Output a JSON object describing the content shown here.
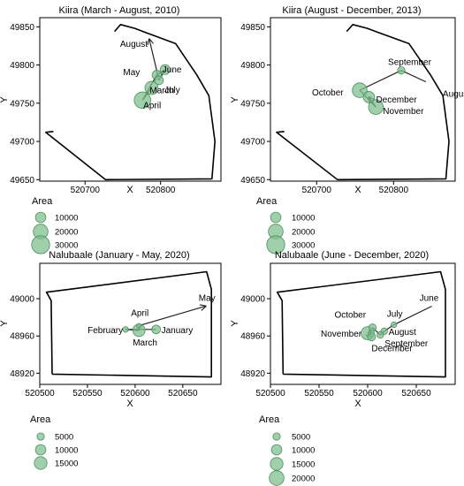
{
  "chart_data": [
    {
      "type": "scatter",
      "title": "Kiira (March - August, 2010)",
      "xlabel": "X",
      "ylabel": "Y",
      "xlim": [
        520640,
        520880
      ],
      "ylim": [
        49648,
        49862
      ],
      "x_ticks": [
        520700,
        520800
      ],
      "y_ticks": [
        49650,
        49700,
        49750,
        49800,
        49850
      ],
      "boundary": [
        [
          520658,
          49713
        ],
        [
          520648,
          49712
        ],
        [
          520727,
          49650
        ],
        [
          520868,
          49651
        ],
        [
          520872,
          49700
        ],
        [
          520864,
          49760
        ],
        [
          520848,
          49787
        ],
        [
          520820,
          49828
        ],
        [
          520779,
          49843
        ],
        [
          520766,
          49848
        ],
        [
          520747,
          49853
        ],
        [
          520739,
          49844
        ]
      ],
      "points": [
        {
          "label": "August",
          "x": 520785,
          "y": 49834,
          "area": 0
        },
        {
          "label": "June",
          "x": 520806,
          "y": 49794,
          "area": 9000
        },
        {
          "label": "May",
          "x": 520795,
          "y": 49787,
          "area": 8000
        },
        {
          "label": "July",
          "x": 520798,
          "y": 49780,
          "area": 7000
        },
        {
          "label": "March",
          "x": 520788,
          "y": 49770,
          "area": 16000
        },
        {
          "label": "April",
          "x": 520776,
          "y": 49754,
          "area": 25000
        }
      ],
      "path_order": [
        "March",
        "April",
        "May",
        "June",
        "July",
        "August"
      ],
      "legend": {
        "title": "Area",
        "entries": [
          {
            "label": "10000",
            "value": 10000
          },
          {
            "label": "20000",
            "value": 20000
          },
          {
            "label": "30000",
            "value": 30000
          }
        ]
      }
    },
    {
      "type": "scatter",
      "title": "Kiira (August - December, 2013)",
      "xlabel": "X",
      "ylabel": "Y",
      "xlim": [
        520640,
        520880
      ],
      "ylim": [
        49648,
        49862
      ],
      "x_ticks": [
        520700,
        520800
      ],
      "y_ticks": [
        49650,
        49700,
        49750,
        49800,
        49850
      ],
      "boundary": [
        [
          520658,
          49713
        ],
        [
          520648,
          49712
        ],
        [
          520727,
          49650
        ],
        [
          520868,
          49651
        ],
        [
          520872,
          49700
        ],
        [
          520864,
          49760
        ],
        [
          520848,
          49787
        ],
        [
          520820,
          49828
        ],
        [
          520779,
          49843
        ],
        [
          520766,
          49848
        ],
        [
          520747,
          49853
        ],
        [
          520739,
          49844
        ]
      ],
      "points": [
        {
          "label": "September",
          "x": 520810,
          "y": 49793,
          "area": 5000
        },
        {
          "label": "August",
          "x": 520842,
          "y": 49778,
          "area": 0
        },
        {
          "label": "October",
          "x": 520756,
          "y": 49767,
          "area": 20000
        },
        {
          "label": "December",
          "x": 520768,
          "y": 49758,
          "area": 12000
        },
        {
          "label": "November",
          "x": 520777,
          "y": 49745,
          "area": 20000
        }
      ],
      "path_order": [
        "August",
        "September",
        "October",
        "November",
        "December"
      ],
      "legend": {
        "title": "Area",
        "entries": [
          {
            "label": "10000",
            "value": 10000
          },
          {
            "label": "20000",
            "value": 20000
          },
          {
            "label": "30000",
            "value": 30000
          }
        ]
      }
    },
    {
      "type": "scatter",
      "title": "Nalubaale (January  - May, 2020)",
      "xlabel": "X",
      "ylabel": "Y",
      "xlim": [
        520500,
        520690
      ],
      "ylim": [
        48908,
        49038
      ],
      "x_ticks": [
        520500,
        520550,
        520600,
        520650
      ],
      "y_ticks": [
        48920,
        48960,
        49000
      ],
      "boundary": [
        [
          520513,
          48919
        ],
        [
          520512,
          48998
        ],
        [
          520507,
          49007
        ],
        [
          520675,
          49029
        ],
        [
          520680,
          49010
        ],
        [
          520680,
          48916
        ],
        [
          520513,
          48919
        ]
      ],
      "points": [
        {
          "label": "May",
          "x": 520674,
          "y": 48992,
          "area": 0
        },
        {
          "label": "April",
          "x": 520604,
          "y": 48971,
          "area": 2000
        },
        {
          "label": "February",
          "x": 520590,
          "y": 48967,
          "area": 3000
        },
        {
          "label": "January",
          "x": 520622,
          "y": 48967,
          "area": 7000
        },
        {
          "label": "March",
          "x": 520604,
          "y": 48966,
          "area": 14000
        }
      ],
      "path_order": [
        "January",
        "February",
        "March",
        "April",
        "May"
      ],
      "legend": {
        "title": "Area",
        "entries": [
          {
            "label": "5000",
            "value": 5000
          },
          {
            "label": "10000",
            "value": 10000
          },
          {
            "label": "15000",
            "value": 15000
          }
        ]
      }
    },
    {
      "type": "scatter",
      "title": "Nalubaale (June - December, 2020)",
      "xlabel": "X",
      "ylabel": "Y",
      "xlim": [
        520500,
        520690
      ],
      "ylim": [
        48908,
        49038
      ],
      "x_ticks": [
        520500,
        520550,
        520600,
        520650
      ],
      "y_ticks": [
        48920,
        48960,
        49000
      ],
      "boundary": [
        [
          520513,
          48919
        ],
        [
          520512,
          48998
        ],
        [
          520507,
          49007
        ],
        [
          520675,
          49029
        ],
        [
          520680,
          49010
        ],
        [
          520680,
          48916
        ],
        [
          520513,
          48919
        ]
      ],
      "points": [
        {
          "label": "June",
          "x": 520666,
          "y": 48992,
          "area": 0
        },
        {
          "label": "July",
          "x": 520627,
          "y": 48972,
          "area": 3000
        },
        {
          "label": "October",
          "x": 520605,
          "y": 48969,
          "area": 5000
        },
        {
          "label": "August",
          "x": 520617,
          "y": 48965,
          "area": 4000
        },
        {
          "label": "November",
          "x": 520600,
          "y": 48963,
          "area": 16000
        },
        {
          "label": "September",
          "x": 520613,
          "y": 48961,
          "area": 4000
        },
        {
          "label": "December",
          "x": 520604,
          "y": 48959,
          "area": 6000
        }
      ],
      "path_order": [
        "June",
        "July",
        "August",
        "September",
        "October",
        "November",
        "December"
      ],
      "legend": {
        "title": "Area",
        "entries": [
          {
            "label": "5000",
            "value": 5000
          },
          {
            "label": "10000",
            "value": 10000
          },
          {
            "label": "15000",
            "value": 15000
          },
          {
            "label": "20000",
            "value": 20000
          }
        ]
      }
    }
  ]
}
